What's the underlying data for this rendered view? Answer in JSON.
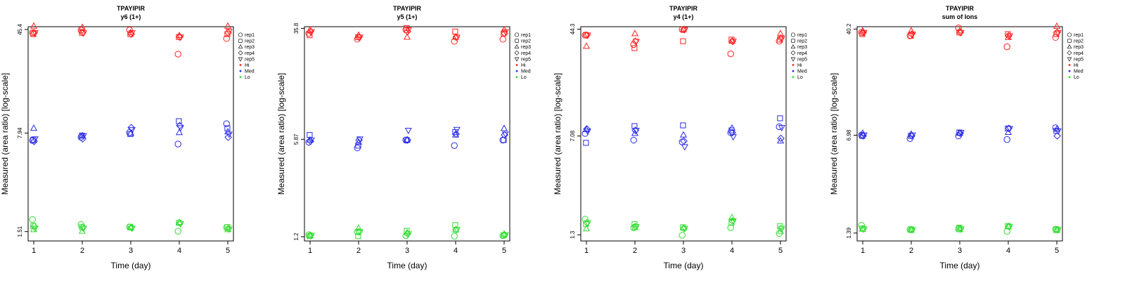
{
  "colors": {
    "Hi": "#ff2020",
    "Med": "#2a2ae6",
    "Lo": "#33dd33",
    "frame": "#000000"
  },
  "chart_data": [
    {
      "type": "scatter",
      "title": "TPAYIPIR",
      "subtitle": "y6 (1+)",
      "xlabel": "Time (day)",
      "ylabel": "Measured (area ratio) [log-scale]",
      "xticks": [
        1,
        2,
        3,
        4,
        5
      ],
      "yticks": [
        "1.51",
        "7.94",
        "45.4"
      ],
      "ylim_log": [
        1.29,
        47.6
      ],
      "legend": {
        "position": "right",
        "entries": [
          "rep1",
          "rep2",
          "rep3",
          "rep4",
          "rep5",
          "Hi",
          "Med",
          "Lo"
        ]
      },
      "series": {
        "Hi": {
          "rep1": [
            43,
            45,
            45,
            30,
            39
          ],
          "rep2": [
            42,
            43,
            42,
            40,
            42
          ],
          "rep3": [
            48,
            47,
            43,
            41,
            48
          ],
          "rep4": [
            43,
            43,
            42,
            40,
            43
          ],
          "rep5": [
            43,
            43,
            43,
            40,
            44
          ]
        },
        "Med": {
          "rep1": [
            7.0,
            7.4,
            8.0,
            6.6,
            9.3
          ],
          "rep2": [
            7.1,
            7.6,
            7.8,
            9.7,
            8.6
          ],
          "rep3": [
            8.6,
            7.6,
            7.9,
            8.0,
            8.1
          ],
          "rep4": [
            6.9,
            7.2,
            8.7,
            9.0,
            7.4
          ],
          "rep5": [
            7.2,
            7.6,
            8.4,
            8.7,
            7.8
          ]
        },
        "Lo": {
          "rep1": [
            1.85,
            1.7,
            1.63,
            1.52,
            1.62
          ],
          "rep2": [
            1.66,
            1.63,
            1.64,
            1.75,
            1.63
          ],
          "rep3": [
            1.56,
            1.52,
            1.61,
            1.76,
            1.56
          ],
          "rep4": [
            1.65,
            1.62,
            1.62,
            1.75,
            1.59
          ],
          "rep5": [
            1.6,
            1.6,
            1.6,
            1.72,
            1.58
          ]
        }
      }
    },
    {
      "type": "scatter",
      "title": "TPAYIPIR",
      "subtitle": "y5 (1+)",
      "xlabel": "Time (day)",
      "ylabel": "Measured (area ratio) [log-scale]",
      "xticks": [
        1,
        2,
        3,
        4,
        5
      ],
      "yticks": [
        "1.2",
        "5.87",
        "35.8"
      ],
      "ylim_log": [
        1.12,
        36.8
      ],
      "legend": {
        "position": "right",
        "entries": [
          "rep1",
          "rep2",
          "rep3",
          "rep4",
          "rep5",
          "Hi",
          "Med",
          "Lo"
        ]
      },
      "series": {
        "Hi": {
          "rep1": [
            33,
            30,
            35,
            29,
            30
          ],
          "rep2": [
            32,
            31,
            36,
            34,
            33
          ],
          "rep3": [
            35,
            32,
            31,
            31,
            35
          ],
          "rep4": [
            34,
            31,
            34,
            31,
            33
          ],
          "rep5": [
            34,
            31,
            35,
            31,
            34
          ]
        },
        "Med": {
          "rep1": [
            5.6,
            5.1,
            5.8,
            5.3,
            5.8
          ],
          "rep2": [
            6.3,
            5.3,
            5.8,
            6.6,
            5.8
          ],
          "rep3": [
            5.8,
            5.6,
            5.8,
            6.3,
            7.0
          ],
          "rep4": [
            5.7,
            5.8,
            5.8,
            6.4,
            6.3
          ],
          "rep5": [
            5.8,
            5.9,
            6.8,
            6.9,
            6.4
          ]
        },
        "Lo": {
          "rep1": [
            1.24,
            1.3,
            1.22,
            1.21,
            1.22
          ],
          "rep2": [
            1.21,
            1.21,
            1.32,
            1.45,
            1.23
          ],
          "rep3": [
            1.22,
            1.38,
            1.28,
            1.34,
            1.25
          ],
          "rep4": [
            1.23,
            1.3,
            1.26,
            1.35,
            1.24
          ],
          "rep5": [
            1.23,
            1.3,
            1.26,
            1.35,
            1.24
          ]
        }
      }
    },
    {
      "type": "scatter",
      "title": "TPAYIPIR",
      "subtitle": "y4 (1+)",
      "xlabel": "Time (day)",
      "ylabel": "Measured (area ratio) [log-scale]",
      "xticks": [
        1,
        2,
        3,
        4,
        5
      ],
      "yticks": [
        "1.3",
        "7.08",
        "44.3"
      ],
      "ylim_log": [
        1.17,
        46.2
      ],
      "legend": {
        "position": "right",
        "entries": [
          "rep1",
          "rep2",
          "rep3",
          "rep4",
          "rep5",
          "Hi",
          "Med",
          "Lo"
        ]
      },
      "series": {
        "Hi": {
          "rep1": [
            40,
            34,
            44,
            29,
            36
          ],
          "rep2": [
            40,
            32,
            36,
            37,
            37
          ],
          "rep3": [
            33,
            41,
            44,
            36,
            41
          ],
          "rep4": [
            40,
            36,
            44,
            36,
            38
          ],
          "rep5": [
            40,
            36,
            44,
            36,
            38
          ]
        },
        "Med": {
          "rep1": [
            7.4,
            6.6,
            6.4,
            7.5,
            8.3
          ],
          "rep2": [
            6.3,
            8.4,
            8.5,
            7.8,
            9.6
          ],
          "rep3": [
            7.9,
            7.4,
            7.2,
            8.1,
            6.5
          ],
          "rep4": [
            8.0,
            7.8,
            6.5,
            7.5,
            6.8
          ],
          "rep5": [
            7.7,
            7.8,
            5.9,
            7.0,
            8.2
          ]
        },
        "Lo": {
          "rep1": [
            1.7,
            1.47,
            1.29,
            1.47,
            1.33
          ],
          "rep2": [
            1.56,
            1.56,
            1.48,
            1.6,
            1.51
          ],
          "rep3": [
            1.44,
            1.47,
            1.46,
            1.75,
            1.38
          ],
          "rep4": [
            1.6,
            1.5,
            1.45,
            1.65,
            1.45
          ],
          "rep5": [
            1.6,
            1.5,
            1.45,
            1.65,
            1.45
          ]
        }
      }
    },
    {
      "type": "scatter",
      "title": "TPAYIPIR",
      "subtitle": "sum of Ions",
      "xlabel": "Time (day)",
      "ylabel": "Measured (area ratio) [log-scale]",
      "xticks": [
        1,
        2,
        3,
        4,
        5
      ],
      "yticks": [
        "1.39",
        "6.98",
        "40.2"
      ],
      "ylim_log": [
        1.22,
        41.8
      ],
      "legend": {
        "position": "right",
        "entries": [
          "rep1",
          "rep2",
          "rep3",
          "rep4",
          "rep5",
          "Hi",
          "Med",
          "Lo"
        ]
      },
      "series": {
        "Hi": {
          "rep1": [
            38,
            36,
            41,
            30,
            35
          ],
          "rep2": [
            37,
            36,
            38,
            37,
            37
          ],
          "rep3": [
            39,
            39,
            39,
            35,
            42
          ],
          "rep4": [
            38,
            37,
            38,
            36,
            38
          ],
          "rep5": [
            38,
            37,
            38,
            36,
            38
          ]
        },
        "Med": {
          "rep1": [
            7.0,
            6.6,
            6.9,
            6.5,
            7.9
          ],
          "rep2": [
            6.9,
            6.9,
            7.3,
            7.8,
            7.5
          ],
          "rep3": [
            7.2,
            7.1,
            7.2,
            7.3,
            7.7
          ],
          "rep4": [
            6.9,
            6.9,
            7.2,
            7.8,
            6.9
          ],
          "rep5": [
            7.0,
            7.0,
            7.3,
            7.8,
            7.5
          ]
        },
        "Lo": {
          "rep1": [
            1.58,
            1.47,
            1.49,
            1.43,
            1.48
          ],
          "rep2": [
            1.5,
            1.48,
            1.52,
            1.56,
            1.48
          ],
          "rep3": [
            1.48,
            1.46,
            1.47,
            1.54,
            1.45
          ],
          "rep4": [
            1.49,
            1.47,
            1.49,
            1.55,
            1.47
          ],
          "rep5": [
            1.49,
            1.47,
            1.49,
            1.55,
            1.47
          ]
        }
      }
    }
  ]
}
